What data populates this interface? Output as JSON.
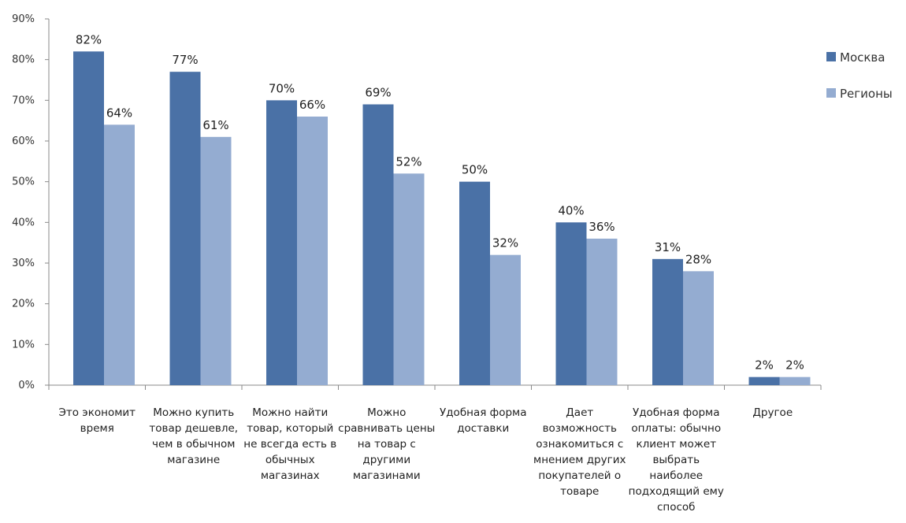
{
  "chart_data": {
    "type": "bar",
    "ylim": [
      0,
      90
    ],
    "y_ticks": [
      0,
      10,
      20,
      30,
      40,
      50,
      60,
      70,
      80,
      90
    ],
    "y_tick_suffix": "%",
    "grid": false,
    "legend_position": "right",
    "categories": [
      "Это экономит время",
      "Можно купить товар дешевле, чем в обычном магазине",
      "Можно найти товар, который не всегда есть в обычных магазинах",
      "Можно сравнивать цены на товар с другими магазинами",
      "Удобная форма доставки",
      "Дает возможность ознакомиться с мнением других покупателей о товаре",
      "Удобная форма оплаты: обычно клиент может выбрать наиболее подходящий ему способ",
      "Другое"
    ],
    "category_lines": [
      [
        "Это экономит",
        "время"
      ],
      [
        "Можно купить",
        "товар дешевле,",
        "чем в обычном",
        "магазине"
      ],
      [
        "Можно найти",
        "товар, который",
        "не всегда есть в",
        "обычных",
        "магазинах"
      ],
      [
        "Можно",
        "сравнивать цены",
        "на товар с",
        "другими",
        "магазинами"
      ],
      [
        "Удобная форма",
        "доставки"
      ],
      [
        "Дает",
        "возможность",
        "ознакомиться с",
        "мнением других",
        "покупателей о",
        "товаре"
      ],
      [
        "Удобная форма",
        "оплаты: обычно",
        "клиент может",
        "выбрать",
        "наиболее",
        "подходящий ему",
        "способ"
      ],
      [
        "Другое"
      ]
    ],
    "series": [
      {
        "name": "Москва",
        "color": "#4a71a6",
        "values": [
          82,
          77,
          70,
          69,
          50,
          40,
          31,
          2
        ],
        "labels": [
          "82%",
          "77%",
          "70%",
          "69%",
          "50%",
          "40%",
          "31%",
          "2%"
        ]
      },
      {
        "name": "Регионы",
        "color": "#94acd1",
        "values": [
          64,
          61,
          66,
          52,
          32,
          36,
          28,
          2
        ],
        "labels": [
          "64%",
          "61%",
          "66%",
          "52%",
          "32%",
          "36%",
          "28%",
          "2%"
        ]
      }
    ]
  }
}
